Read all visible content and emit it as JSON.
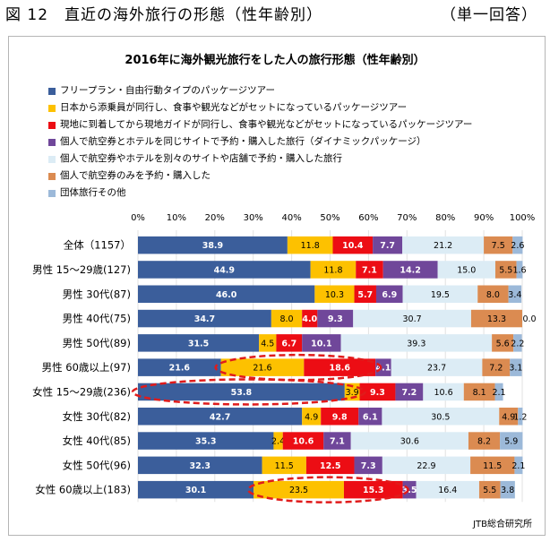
{
  "figure": {
    "title": "図 12　直近の海外旅行の形態（性年齢別）",
    "note": "（単一回答）"
  },
  "source": "JTB総合研究所",
  "chart_data": {
    "type": "bar",
    "orientation": "horizontal",
    "stacked": true,
    "title": "2016年に海外観光旅行をした人の旅行形態（性年齢別）",
    "xlim": [
      0,
      100
    ],
    "xticks": [
      "0%",
      "10%",
      "20%",
      "30%",
      "40%",
      "50%",
      "60%",
      "70%",
      "80%",
      "90%",
      "100%"
    ],
    "categories": [
      "全体（1157）",
      "男性 15～29歳(127)",
      "男性 30代(87)",
      "男性 40代(75)",
      "男性 50代(89)",
      "男性 60歳以上(97)",
      "女性 15～29歳(236)",
      "女性 30代(82)",
      "女性 40代(85)",
      "女性 50代(96)",
      "女性 60歳以上(183)"
    ],
    "series": [
      {
        "name": "フリープラン・自由行動タイプのパッケージツアー",
        "color": "#3b5e9b",
        "values": [
          38.9,
          44.9,
          46.0,
          34.7,
          31.5,
          21.6,
          53.8,
          42.7,
          35.3,
          32.3,
          30.1
        ],
        "labels": [
          "38.9",
          "44.9",
          "46.0",
          "34.7",
          "31.5",
          "21.6",
          "53.8",
          "42.7",
          "35.3",
          "32.3",
          "30.1"
        ]
      },
      {
        "name": "日本から添乗員が同行し、食事や観光などがセットになっているパッケージツアー",
        "color": "#fdc100",
        "values": [
          11.8,
          11.8,
          10.3,
          8.0,
          4.5,
          21.6,
          3.9,
          4.9,
          2.4,
          11.5,
          23.5
        ],
        "labels": [
          "11.8",
          "11.8",
          "10.3",
          "8.0",
          "4.5",
          "21.6",
          "3.9",
          "4.9",
          "2.4",
          "11.5",
          "23.5"
        ]
      },
      {
        "name": "現地に到着してから現地ガイドが同行し、食事や観光などがセットになっているパッケージツアー",
        "color": "#ec0d14",
        "values": [
          10.4,
          7.1,
          5.7,
          4.0,
          6.7,
          18.6,
          9.3,
          9.8,
          10.6,
          12.5,
          15.3
        ],
        "labels": [
          "10.4",
          "7.1",
          "5.7",
          "4.0",
          "6.7",
          "18.6",
          "9.3",
          "9.8",
          "10.6",
          "12.5",
          "15.3"
        ]
      },
      {
        "name": "個人で航空券とホテルを同じサイトで予約・購入した旅行（ダイナミックパッケージ）",
        "color": "#70479a",
        "values": [
          7.7,
          14.2,
          6.9,
          9.3,
          10.1,
          4.1,
          7.2,
          6.1,
          7.1,
          7.3,
          3.5
        ],
        "labels": [
          "7.7",
          "14.2",
          "6.9",
          "9.3",
          "10.1",
          "4.1",
          "7.2",
          "6.1",
          "7.1",
          "7.3",
          "3.5"
        ]
      },
      {
        "name": "個人で航空券やホテルを別々のサイトや店舗で予約・購入した旅行",
        "color": "#dcecf5",
        "values": [
          21.2,
          15.0,
          19.5,
          30.7,
          39.3,
          23.7,
          10.6,
          30.5,
          30.6,
          22.9,
          16.4
        ],
        "labels": [
          "21.2",
          "15.0",
          "19.5",
          "30.7",
          "39.3",
          "23.7",
          "10.6",
          "30.5",
          "30.6",
          "22.9",
          "16.4"
        ]
      },
      {
        "name": "個人で航空券のみを予約・購入した",
        "color": "#db8b51",
        "values": [
          7.5,
          5.5,
          8.0,
          13.3,
          5.6,
          7.2,
          8.1,
          4.9,
          8.2,
          11.5,
          5.5
        ],
        "labels": [
          "7.5",
          "5.5",
          "8.0",
          "13.3",
          "5.6",
          "7.2",
          "8.1",
          "4.9",
          "8.2",
          "11.5",
          "5.5"
        ]
      },
      {
        "name": "団体旅行その他",
        "color": "#9cb9d9",
        "values": [
          2.6,
          1.6,
          3.4,
          0.0,
          2.2,
          3.1,
          2.1,
          1.2,
          5.9,
          2.1,
          3.8
        ],
        "labels": [
          "2.6",
          "1.6",
          "3.4",
          "0.0",
          "2.2",
          "3.1",
          "2.1",
          "1.2",
          "5.9",
          "2.1",
          "3.8"
        ]
      }
    ],
    "highlights": [
      {
        "category_index": 5,
        "from": 21.6,
        "to": 61.8
      },
      {
        "category_index": 6,
        "from": 0.0,
        "to": 57.7
      },
      {
        "category_index": 10,
        "from": 30.1,
        "to": 68.9
      }
    ],
    "highlight_color": "#e01b1b"
  }
}
